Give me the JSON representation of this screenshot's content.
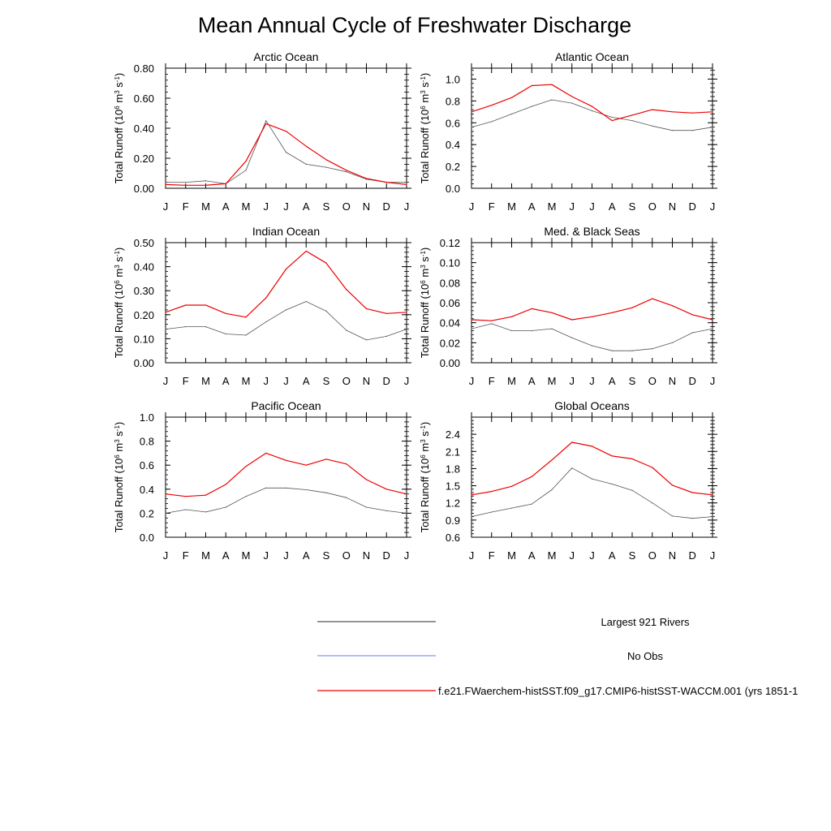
{
  "figure": {
    "title": "Mean Annual Cycle of Freshwater Discharge"
  },
  "colors": {
    "obs_line": "#555555",
    "no_obs_line": "#8899ee",
    "model_line": "#ee0000",
    "frame": "#000000"
  },
  "chart_data": [
    {
      "type": "line",
      "title": "Arctic Ocean",
      "xlabel": "",
      "ylabel": "Total Runoff (10^6 m^3 s^-1)",
      "categories": [
        "J",
        "F",
        "M",
        "A",
        "M",
        "J",
        "J",
        "A",
        "S",
        "O",
        "N",
        "D",
        "J"
      ],
      "ylim": [
        0,
        0.8
      ],
      "yticks": [
        "0.00",
        "0.20",
        "0.40",
        "0.60",
        "0.80"
      ],
      "series": [
        {
          "name": "Largest 921 Rivers",
          "color": "#555555",
          "values": [
            0.04,
            0.04,
            0.05,
            0.03,
            0.12,
            0.45,
            0.24,
            0.16,
            0.14,
            0.11,
            0.06,
            0.04,
            0.04
          ]
        },
        {
          "name": "f.e21.FWaerchem-histSST.f09_g17.CMIP6-histSST-WACCM.001 (yrs 1851-1",
          "color": "#ee0000",
          "values": [
            0.025,
            0.02,
            0.02,
            0.03,
            0.18,
            0.43,
            0.38,
            0.28,
            0.19,
            0.12,
            0.065,
            0.04,
            0.025
          ]
        }
      ]
    },
    {
      "type": "line",
      "title": "Atlantic Ocean",
      "xlabel": "",
      "ylabel": "Total Runoff (10^6 m^3 s^-1)",
      "categories": [
        "J",
        "F",
        "M",
        "A",
        "M",
        "J",
        "J",
        "A",
        "S",
        "O",
        "N",
        "D",
        "J"
      ],
      "ylim": [
        0,
        1.1
      ],
      "yticks": [
        "0.0",
        "0.2",
        "0.4",
        "0.6",
        "0.8",
        "1.0"
      ],
      "series": [
        {
          "name": "Largest 921 Rivers",
          "color": "#555555",
          "values": [
            0.56,
            0.61,
            0.68,
            0.75,
            0.81,
            0.78,
            0.71,
            0.65,
            0.62,
            0.57,
            0.53,
            0.53,
            0.56
          ]
        },
        {
          "name": "f.e21.FWaerchem-histSST.f09_g17.CMIP6-histSST-WACCM.001 (yrs 1851-1",
          "color": "#ee0000",
          "values": [
            0.7,
            0.76,
            0.83,
            0.94,
            0.95,
            0.84,
            0.75,
            0.62,
            0.67,
            0.72,
            0.7,
            0.69,
            0.7
          ]
        }
      ]
    },
    {
      "type": "line",
      "title": "Indian Ocean",
      "xlabel": "",
      "ylabel": "Total Runoff (10^6 m^3 s^-1)",
      "categories": [
        "J",
        "F",
        "M",
        "A",
        "M",
        "J",
        "J",
        "A",
        "S",
        "O",
        "N",
        "D",
        "J"
      ],
      "ylim": [
        0,
        0.5
      ],
      "yticks": [
        "0.00",
        "0.10",
        "0.20",
        "0.30",
        "0.40",
        "0.50"
      ],
      "series": [
        {
          "name": "Largest 921 Rivers",
          "color": "#555555",
          "values": [
            0.14,
            0.15,
            0.15,
            0.12,
            0.115,
            0.17,
            0.22,
            0.255,
            0.215,
            0.135,
            0.095,
            0.11,
            0.14
          ]
        },
        {
          "name": "f.e21.FWaerchem-histSST.f09_g17.CMIP6-histSST-WACCM.001 (yrs 1851-1",
          "color": "#ee0000",
          "values": [
            0.21,
            0.24,
            0.24,
            0.205,
            0.19,
            0.27,
            0.39,
            0.465,
            0.415,
            0.305,
            0.225,
            0.205,
            0.21
          ]
        }
      ]
    },
    {
      "type": "line",
      "title": "Med. & Black Seas",
      "xlabel": "",
      "ylabel": "Total Runoff (10^6 m^3 s^-1)",
      "categories": [
        "J",
        "F",
        "M",
        "A",
        "M",
        "J",
        "J",
        "A",
        "S",
        "O",
        "N",
        "D",
        "J"
      ],
      "ylim": [
        0,
        0.12
      ],
      "yticks": [
        "0.00",
        "0.02",
        "0.04",
        "0.06",
        "0.08",
        "0.10",
        "0.12"
      ],
      "series": [
        {
          "name": "Largest 921 Rivers",
          "color": "#555555",
          "values": [
            0.034,
            0.039,
            0.032,
            0.032,
            0.034,
            0.025,
            0.017,
            0.012,
            0.012,
            0.014,
            0.02,
            0.03,
            0.034
          ]
        },
        {
          "name": "f.e21.FWaerchem-histSST.f09_g17.CMIP6-histSST-WACCM.001 (yrs 1851-1",
          "color": "#ee0000",
          "values": [
            0.043,
            0.042,
            0.046,
            0.054,
            0.05,
            0.043,
            0.046,
            0.05,
            0.055,
            0.064,
            0.057,
            0.048,
            0.043
          ]
        }
      ]
    },
    {
      "type": "line",
      "title": "Pacific Ocean",
      "xlabel": "",
      "ylabel": "Total Runoff (10^6 m^3 s^-1)",
      "categories": [
        "J",
        "F",
        "M",
        "A",
        "M",
        "J",
        "J",
        "A",
        "S",
        "O",
        "N",
        "D",
        "J"
      ],
      "ylim": [
        0,
        1.0
      ],
      "yticks": [
        "0.0",
        "0.2",
        "0.4",
        "0.6",
        "0.8",
        "1.0"
      ],
      "series": [
        {
          "name": "Largest 921 Rivers",
          "color": "#555555",
          "values": [
            0.2,
            0.23,
            0.21,
            0.25,
            0.34,
            0.41,
            0.41,
            0.395,
            0.37,
            0.33,
            0.25,
            0.22,
            0.2
          ]
        },
        {
          "name": "f.e21.FWaerchem-histSST.f09_g17.CMIP6-histSST-WACCM.001 (yrs 1851-1",
          "color": "#ee0000",
          "values": [
            0.36,
            0.34,
            0.35,
            0.44,
            0.59,
            0.7,
            0.64,
            0.6,
            0.65,
            0.61,
            0.48,
            0.4,
            0.36
          ]
        }
      ]
    },
    {
      "type": "line",
      "title": "Global Oceans",
      "xlabel": "",
      "ylabel": "Total Runoff (10^6 m^3 s^-1)",
      "categories": [
        "J",
        "F",
        "M",
        "A",
        "M",
        "J",
        "J",
        "A",
        "S",
        "O",
        "N",
        "D",
        "J"
      ],
      "ylim": [
        0.6,
        2.7
      ],
      "yticks": [
        "0.6",
        "0.9",
        "1.2",
        "1.5",
        "1.8",
        "2.1",
        "2.4"
      ],
      "series": [
        {
          "name": "Largest 921 Rivers",
          "color": "#555555",
          "values": [
            0.96,
            1.04,
            1.11,
            1.18,
            1.43,
            1.81,
            1.62,
            1.53,
            1.42,
            1.2,
            0.97,
            0.93,
            0.96
          ]
        },
        {
          "name": "f.e21.FWaerchem-histSST.f09_g17.CMIP6-histSST-WACCM.001 (yrs 1851-1",
          "color": "#ee0000",
          "values": [
            1.34,
            1.4,
            1.49,
            1.66,
            1.95,
            2.26,
            2.19,
            2.02,
            1.97,
            1.82,
            1.51,
            1.38,
            1.34
          ]
        }
      ]
    }
  ],
  "legend": {
    "entries": [
      {
        "label": "Largest 921 Rivers",
        "color": "#555555"
      },
      {
        "label": "No Obs",
        "color": "#8899ee"
      },
      {
        "label": "f.e21.FWaerchem-histSST.f09_g17.CMIP6-histSST-WACCM.001 (yrs 1851-1",
        "color": "#ee0000"
      }
    ]
  }
}
